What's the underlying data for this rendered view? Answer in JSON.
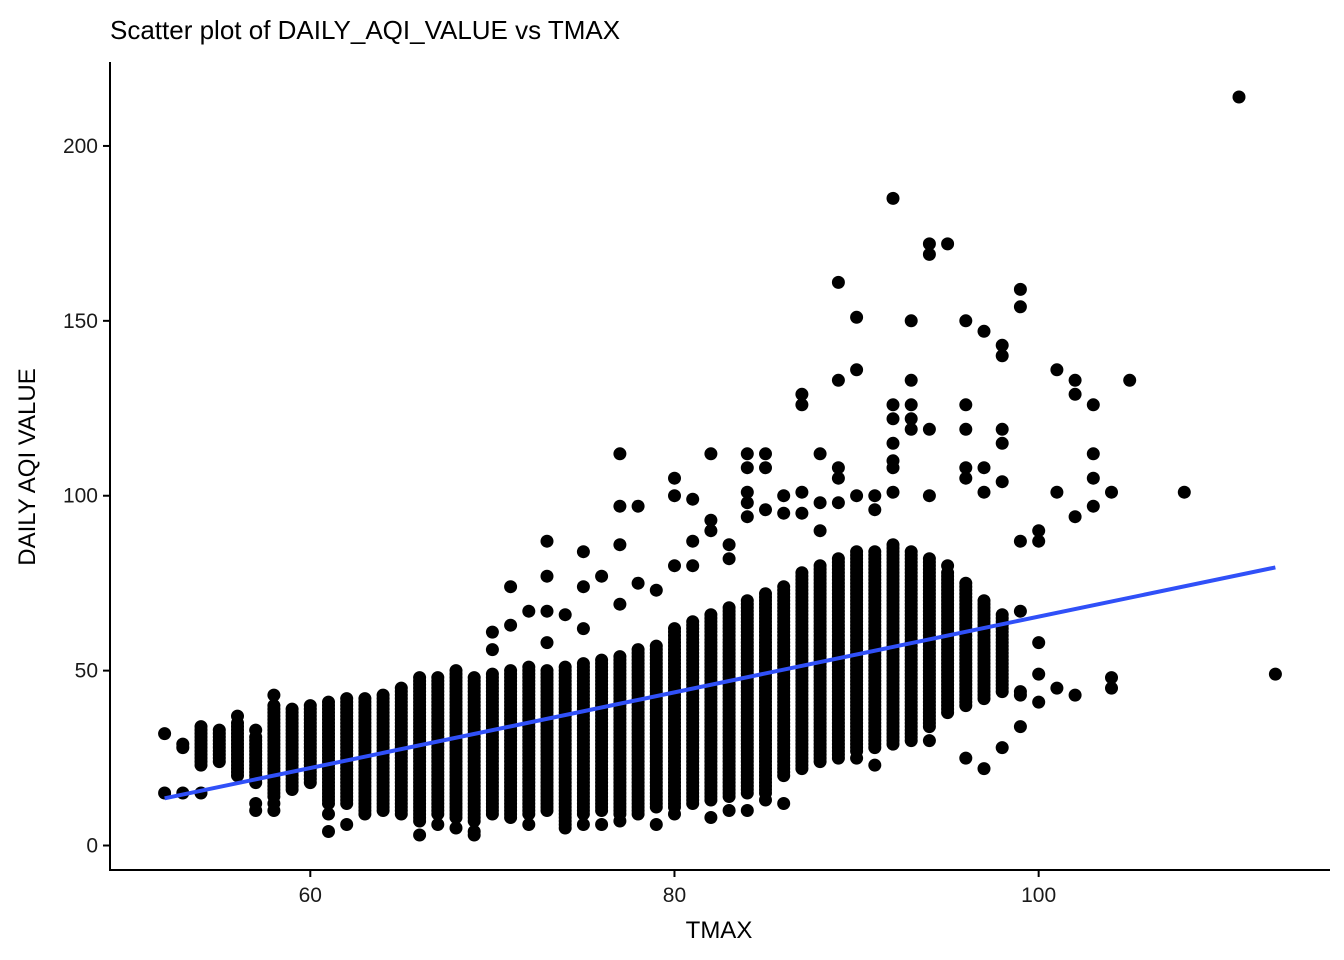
{
  "chart_data": {
    "type": "scatter",
    "title": "Scatter plot of DAILY_AQI_VALUE vs TMAX",
    "xlabel": "TMAX",
    "ylabel": "DAILY AQI VALUE",
    "xlim": [
      49,
      116
    ],
    "ylim": [
      -7,
      224
    ],
    "x_ticks": [
      60,
      80,
      100
    ],
    "x_tick_labels": [
      "60",
      "80",
      "100"
    ],
    "y_ticks": [
      0,
      50,
      100,
      150,
      200
    ],
    "y_tick_labels": [
      "0",
      "50",
      "100",
      "150",
      "200"
    ],
    "grid": false,
    "legend": "none",
    "point_color": "#000000",
    "fit_line_color": "#3050f8",
    "fit_line": {
      "x": [
        52,
        113
      ],
      "y": [
        13.5,
        79.5
      ]
    },
    "column_ranges": [
      [
        54,
        23,
        34
      ],
      [
        55,
        24,
        33
      ],
      [
        56,
        21,
        35
      ],
      [
        57,
        18,
        31
      ],
      [
        58,
        14,
        40
      ],
      [
        59,
        16,
        39
      ],
      [
        60,
        18,
        40
      ],
      [
        61,
        12,
        41
      ],
      [
        62,
        12,
        42
      ],
      [
        63,
        9,
        42
      ],
      [
        64,
        10,
        43
      ],
      [
        65,
        9,
        45
      ],
      [
        66,
        7,
        48
      ],
      [
        67,
        9,
        48
      ],
      [
        68,
        8,
        50
      ],
      [
        69,
        7,
        48
      ],
      [
        70,
        9,
        49
      ],
      [
        71,
        8,
        50
      ],
      [
        72,
        9,
        51
      ],
      [
        73,
        10,
        50
      ],
      [
        74,
        7,
        51
      ],
      [
        75,
        9,
        52
      ],
      [
        76,
        10,
        53
      ],
      [
        77,
        9,
        54
      ],
      [
        78,
        9,
        56
      ],
      [
        79,
        11,
        57
      ],
      [
        80,
        11,
        62
      ],
      [
        81,
        12,
        64
      ],
      [
        82,
        13,
        66
      ],
      [
        83,
        14,
        68
      ],
      [
        84,
        15,
        70
      ],
      [
        85,
        15,
        72
      ],
      [
        86,
        20,
        74
      ],
      [
        87,
        22,
        78
      ],
      [
        88,
        24,
        80
      ],
      [
        89,
        25,
        82
      ],
      [
        90,
        27,
        84
      ],
      [
        91,
        28,
        84
      ],
      [
        92,
        29,
        86
      ],
      [
        93,
        31,
        84
      ],
      [
        94,
        34,
        82
      ],
      [
        95,
        38,
        78
      ],
      [
        96,
        40,
        75
      ],
      [
        97,
        42,
        70
      ],
      [
        98,
        44,
        66
      ]
    ],
    "points": [
      [
        52,
        32
      ],
      [
        52,
        15
      ],
      [
        53,
        29
      ],
      [
        53,
        28
      ],
      [
        53,
        15
      ],
      [
        54,
        31
      ],
      [
        54,
        15
      ],
      [
        55,
        32
      ],
      [
        55,
        25
      ],
      [
        56,
        37
      ],
      [
        56,
        20
      ],
      [
        57,
        33
      ],
      [
        57,
        12
      ],
      [
        57,
        10
      ],
      [
        58,
        43
      ],
      [
        58,
        12
      ],
      [
        58,
        10
      ],
      [
        59,
        21
      ],
      [
        59,
        17
      ],
      [
        60,
        21
      ],
      [
        61,
        22
      ],
      [
        61,
        4
      ],
      [
        61,
        9
      ],
      [
        62,
        6
      ],
      [
        63,
        14
      ],
      [
        64,
        13
      ],
      [
        65,
        13
      ],
      [
        66,
        3
      ],
      [
        67,
        10
      ],
      [
        67,
        6
      ],
      [
        68,
        5
      ],
      [
        69,
        4
      ],
      [
        69,
        3
      ],
      [
        70,
        56
      ],
      [
        70,
        61
      ],
      [
        71,
        74
      ],
      [
        71,
        63
      ],
      [
        72,
        67
      ],
      [
        72,
        6
      ],
      [
        73,
        87
      ],
      [
        73,
        77
      ],
      [
        73,
        67
      ],
      [
        73,
        58
      ],
      [
        74,
        66
      ],
      [
        74,
        6
      ],
      [
        74,
        5
      ],
      [
        75,
        74
      ],
      [
        75,
        84
      ],
      [
        75,
        62
      ],
      [
        75,
        6
      ],
      [
        76,
        77
      ],
      [
        76,
        6
      ],
      [
        77,
        112
      ],
      [
        77,
        97
      ],
      [
        77,
        86
      ],
      [
        77,
        69
      ],
      [
        77,
        7
      ],
      [
        78,
        97
      ],
      [
        78,
        75
      ],
      [
        79,
        73
      ],
      [
        79,
        6
      ],
      [
        80,
        105
      ],
      [
        80,
        100
      ],
      [
        80,
        80
      ],
      [
        80,
        9
      ],
      [
        81,
        99
      ],
      [
        81,
        87
      ],
      [
        81,
        80
      ],
      [
        82,
        112
      ],
      [
        82,
        93
      ],
      [
        82,
        90
      ],
      [
        82,
        8
      ],
      [
        83,
        86
      ],
      [
        83,
        82
      ],
      [
        83,
        10
      ],
      [
        84,
        112
      ],
      [
        84,
        108
      ],
      [
        84,
        101
      ],
      [
        84,
        98
      ],
      [
        84,
        94
      ],
      [
        84,
        10
      ],
      [
        85,
        112
      ],
      [
        85,
        108
      ],
      [
        85,
        96
      ],
      [
        85,
        13
      ],
      [
        86,
        100
      ],
      [
        86,
        95
      ],
      [
        86,
        12
      ],
      [
        87,
        129
      ],
      [
        87,
        126
      ],
      [
        87,
        101
      ],
      [
        87,
        95
      ],
      [
        88,
        112
      ],
      [
        88,
        98
      ],
      [
        88,
        90
      ],
      [
        89,
        161
      ],
      [
        89,
        133
      ],
      [
        89,
        108
      ],
      [
        89,
        105
      ],
      [
        89,
        98
      ],
      [
        90,
        151
      ],
      [
        90,
        136
      ],
      [
        90,
        100
      ],
      [
        90,
        25
      ],
      [
        91,
        100
      ],
      [
        91,
        96
      ],
      [
        91,
        23
      ],
      [
        92,
        185
      ],
      [
        92,
        126
      ],
      [
        92,
        122
      ],
      [
        92,
        115
      ],
      [
        92,
        110
      ],
      [
        92,
        108
      ],
      [
        92,
        101
      ],
      [
        93,
        150
      ],
      [
        93,
        133
      ],
      [
        93,
        126
      ],
      [
        93,
        122
      ],
      [
        93,
        119
      ],
      [
        93,
        30
      ],
      [
        94,
        172
      ],
      [
        94,
        169
      ],
      [
        94,
        119
      ],
      [
        94,
        100
      ],
      [
        94,
        30
      ],
      [
        95,
        172
      ],
      [
        95,
        80
      ],
      [
        95,
        70
      ],
      [
        96,
        150
      ],
      [
        96,
        126
      ],
      [
        96,
        119
      ],
      [
        96,
        108
      ],
      [
        96,
        105
      ],
      [
        96,
        25
      ],
      [
        97,
        147
      ],
      [
        97,
        108
      ],
      [
        97,
        101
      ],
      [
        97,
        22
      ],
      [
        98,
        143
      ],
      [
        98,
        140
      ],
      [
        98,
        119
      ],
      [
        98,
        115
      ],
      [
        98,
        104
      ],
      [
        98,
        28
      ],
      [
        99,
        159
      ],
      [
        99,
        154
      ],
      [
        99,
        87
      ],
      [
        99,
        67
      ],
      [
        99,
        44
      ],
      [
        99,
        43
      ],
      [
        99,
        34
      ],
      [
        100,
        90
      ],
      [
        100,
        87
      ],
      [
        100,
        58
      ],
      [
        100,
        49
      ],
      [
        100,
        41
      ],
      [
        101,
        136
      ],
      [
        101,
        101
      ],
      [
        101,
        45
      ],
      [
        102,
        133
      ],
      [
        102,
        129
      ],
      [
        102,
        94
      ],
      [
        102,
        43
      ],
      [
        103,
        126
      ],
      [
        103,
        112
      ],
      [
        103,
        105
      ],
      [
        103,
        97
      ],
      [
        104,
        101
      ],
      [
        104,
        48
      ],
      [
        104,
        45
      ],
      [
        105,
        133
      ],
      [
        108,
        101
      ],
      [
        111,
        214
      ],
      [
        113,
        49
      ]
    ]
  }
}
